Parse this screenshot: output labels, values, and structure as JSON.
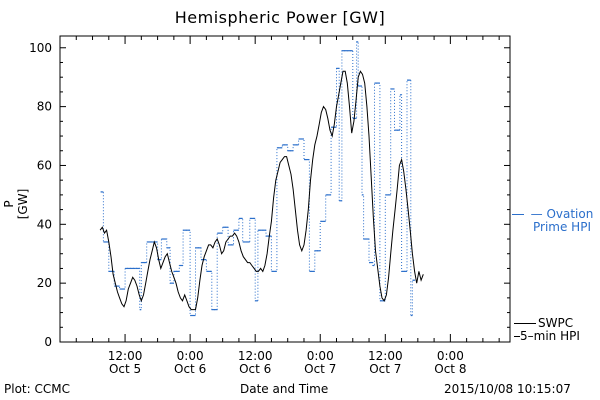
{
  "chart_data": {
    "type": "line",
    "title": "Hemispheric Power [GW]",
    "ylabel": "P [GW]",
    "xlabel": "Date and Time",
    "ylim": [
      0,
      104
    ],
    "xlim": [
      0,
      83
    ],
    "yticks": [
      0,
      20,
      40,
      60,
      80,
      100
    ],
    "xticks": [
      {
        "x": 12,
        "time": "12:00",
        "date": "Oct 5"
      },
      {
        "x": 24,
        "time": "0:00",
        "date": "Oct 6"
      },
      {
        "x": 36,
        "time": "12:00",
        "date": "Oct 6"
      },
      {
        "x": 48,
        "time": "0:00",
        "date": "Oct 7"
      },
      {
        "x": 60,
        "time": "12:00",
        "date": "Oct 7"
      },
      {
        "x": 72,
        "time": "0:00",
        "date": "Oct 8"
      }
    ],
    "series": [
      {
        "name": "Ovation Prime HPI",
        "style": "stepped-dotted",
        "color": "#2b6fcb",
        "steps": [
          [
            7.5,
            51
          ],
          [
            8.0,
            34
          ],
          [
            9.0,
            24
          ],
          [
            10.0,
            19
          ],
          [
            11.0,
            18
          ],
          [
            12.0,
            25
          ],
          [
            13.0,
            25
          ],
          [
            14.0,
            25
          ],
          [
            14.7,
            11
          ],
          [
            15.0,
            27
          ],
          [
            16.0,
            34
          ],
          [
            17.0,
            34
          ],
          [
            18.0,
            28
          ],
          [
            18.7,
            35
          ],
          [
            19.7,
            32
          ],
          [
            20.3,
            20
          ],
          [
            21.0,
            24
          ],
          [
            22.0,
            26
          ],
          [
            22.7,
            38
          ],
          [
            24.0,
            9
          ],
          [
            25.0,
            32
          ],
          [
            26.0,
            28
          ],
          [
            27.0,
            24
          ],
          [
            28.0,
            11
          ],
          [
            29.0,
            37
          ],
          [
            30.0,
            39
          ],
          [
            31.0,
            33
          ],
          [
            32.0,
            38
          ],
          [
            33.0,
            42
          ],
          [
            33.7,
            34
          ],
          [
            34.3,
            34
          ],
          [
            35.0,
            42
          ],
          [
            36.0,
            14
          ],
          [
            36.5,
            38
          ],
          [
            38.0,
            36
          ],
          [
            39.0,
            24
          ],
          [
            40.0,
            66
          ],
          [
            41.0,
            67
          ],
          [
            42.0,
            65
          ],
          [
            43.0,
            67
          ],
          [
            44.0,
            69
          ],
          [
            45.0,
            62
          ],
          [
            46.0,
            24
          ],
          [
            47.0,
            31
          ],
          [
            48.0,
            41
          ],
          [
            49.0,
            50
          ],
          [
            50.0,
            73
          ],
          [
            51.0,
            93
          ],
          [
            51.5,
            48
          ],
          [
            52.0,
            99
          ],
          [
            53.0,
            99
          ],
          [
            54.0,
            76
          ],
          [
            54.7,
            102
          ],
          [
            55.0,
            87
          ],
          [
            55.7,
            50
          ],
          [
            56.0,
            35
          ],
          [
            57.0,
            27
          ],
          [
            57.7,
            26
          ],
          [
            58.0,
            88
          ],
          [
            59.0,
            14
          ],
          [
            60.0,
            50
          ],
          [
            61.0,
            86
          ],
          [
            61.7,
            72
          ],
          [
            62.7,
            84
          ],
          [
            63.0,
            24
          ],
          [
            64.0,
            89
          ],
          [
            64.7,
            9
          ],
          [
            65.0,
            21
          ]
        ]
      },
      {
        "name": "SWPC 5-min HPI",
        "style": "solid",
        "color": "#000000",
        "points": [
          [
            7.4,
            38
          ],
          [
            7.8,
            39
          ],
          [
            8.2,
            37
          ],
          [
            8.6,
            38
          ],
          [
            9.0,
            34
          ],
          [
            9.4,
            29
          ],
          [
            9.8,
            23
          ],
          [
            10.2,
            20
          ],
          [
            10.6,
            17
          ],
          [
            11.0,
            15
          ],
          [
            11.4,
            13
          ],
          [
            11.8,
            12
          ],
          [
            12.2,
            14
          ],
          [
            12.6,
            18
          ],
          [
            13.0,
            20
          ],
          [
            13.4,
            22
          ],
          [
            13.8,
            21
          ],
          [
            14.2,
            19
          ],
          [
            14.6,
            16
          ],
          [
            15.0,
            14
          ],
          [
            15.4,
            16
          ],
          [
            15.8,
            20
          ],
          [
            16.2,
            24
          ],
          [
            16.6,
            28
          ],
          [
            17.0,
            31
          ],
          [
            17.4,
            34
          ],
          [
            17.8,
            32
          ],
          [
            18.2,
            28
          ],
          [
            18.6,
            25
          ],
          [
            19.0,
            27
          ],
          [
            19.4,
            29
          ],
          [
            19.8,
            30
          ],
          [
            20.2,
            27
          ],
          [
            20.6,
            24
          ],
          [
            21.0,
            22
          ],
          [
            21.4,
            20
          ],
          [
            21.8,
            17
          ],
          [
            22.2,
            15
          ],
          [
            22.6,
            14
          ],
          [
            23.0,
            16
          ],
          [
            23.4,
            14
          ],
          [
            23.8,
            12
          ],
          [
            24.2,
            11
          ],
          [
            24.6,
            11
          ],
          [
            25.0,
            11
          ],
          [
            25.4,
            15
          ],
          [
            25.8,
            21
          ],
          [
            26.2,
            26
          ],
          [
            26.6,
            29
          ],
          [
            27.0,
            31
          ],
          [
            27.4,
            33
          ],
          [
            27.8,
            33
          ],
          [
            28.2,
            32
          ],
          [
            28.6,
            34
          ],
          [
            29.0,
            35
          ],
          [
            29.4,
            33
          ],
          [
            29.8,
            30
          ],
          [
            30.2,
            31
          ],
          [
            30.6,
            34
          ],
          [
            31.0,
            35
          ],
          [
            31.4,
            36
          ],
          [
            31.8,
            36
          ],
          [
            32.2,
            37
          ],
          [
            32.6,
            36
          ],
          [
            33.0,
            34
          ],
          [
            33.4,
            31
          ],
          [
            33.8,
            29
          ],
          [
            34.2,
            28
          ],
          [
            34.6,
            27
          ],
          [
            35.0,
            27
          ],
          [
            35.4,
            26
          ],
          [
            35.8,
            25
          ],
          [
            36.2,
            24
          ],
          [
            36.6,
            24
          ],
          [
            37.0,
            25
          ],
          [
            37.4,
            24
          ],
          [
            37.8,
            26
          ],
          [
            38.2,
            30
          ],
          [
            38.6,
            36
          ],
          [
            39.0,
            41
          ],
          [
            39.4,
            49
          ],
          [
            39.8,
            55
          ],
          [
            40.2,
            58
          ],
          [
            40.6,
            61
          ],
          [
            41.0,
            62
          ],
          [
            41.4,
            63
          ],
          [
            41.8,
            63
          ],
          [
            42.2,
            60
          ],
          [
            42.6,
            57
          ],
          [
            43.0,
            52
          ],
          [
            43.4,
            45
          ],
          [
            43.8,
            38
          ],
          [
            44.2,
            33
          ],
          [
            44.6,
            31
          ],
          [
            45.0,
            33
          ],
          [
            45.4,
            38
          ],
          [
            45.8,
            45
          ],
          [
            46.2,
            55
          ],
          [
            46.6,
            62
          ],
          [
            47.0,
            67
          ],
          [
            47.4,
            70
          ],
          [
            47.8,
            74
          ],
          [
            48.2,
            78
          ],
          [
            48.6,
            80
          ],
          [
            49.0,
            79
          ],
          [
            49.4,
            76
          ],
          [
            49.8,
            72
          ],
          [
            50.2,
            70
          ],
          [
            50.6,
            74
          ],
          [
            51.0,
            80
          ],
          [
            51.4,
            84
          ],
          [
            51.8,
            88
          ],
          [
            52.2,
            92
          ],
          [
            52.6,
            92
          ],
          [
            53.0,
            88
          ],
          [
            53.4,
            80
          ],
          [
            53.8,
            71
          ],
          [
            54.2,
            75
          ],
          [
            54.6,
            82
          ],
          [
            55.0,
            90
          ],
          [
            55.4,
            92
          ],
          [
            55.8,
            91
          ],
          [
            56.2,
            88
          ],
          [
            56.6,
            80
          ],
          [
            57.0,
            70
          ],
          [
            57.4,
            56
          ],
          [
            57.8,
            42
          ],
          [
            58.2,
            31
          ],
          [
            58.6,
            25
          ],
          [
            59.0,
            19
          ],
          [
            59.4,
            15
          ],
          [
            59.8,
            14
          ],
          [
            60.2,
            16
          ],
          [
            60.6,
            22
          ],
          [
            61.0,
            30
          ],
          [
            61.4,
            38
          ],
          [
            61.8,
            45
          ],
          [
            62.2,
            52
          ],
          [
            62.6,
            60
          ],
          [
            63.0,
            62
          ],
          [
            63.4,
            58
          ],
          [
            63.8,
            52
          ],
          [
            64.2,
            45
          ],
          [
            64.6,
            38
          ],
          [
            65.0,
            30
          ],
          [
            65.4,
            24
          ],
          [
            65.8,
            20
          ],
          [
            66.2,
            24
          ],
          [
            66.6,
            21
          ],
          [
            67.0,
            23
          ]
        ]
      }
    ]
  },
  "legend": {
    "ovation_line1": "— Ovation",
    "ovation_line2": "Prime HPI",
    "swpc_line1": "SWPC",
    "swpc_line2": "5–min HPI"
  },
  "footer": {
    "plot_by": "Plot: CCMC",
    "xlabel": "Date and Time",
    "timestamp": "2015/10/08 10:15:07"
  }
}
